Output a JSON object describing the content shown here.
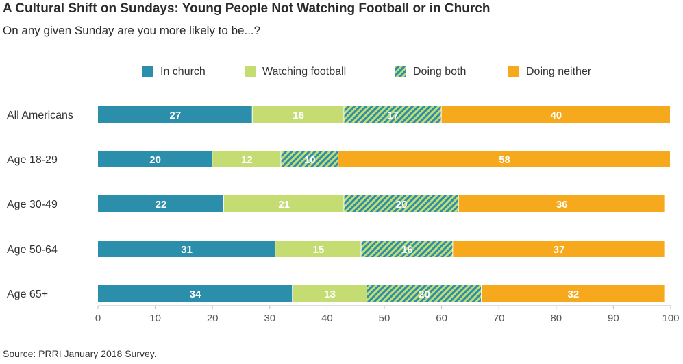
{
  "header": {
    "title": "A Cultural Shift on Sundays: Young People Not Watching Football or in Church",
    "subtitle": "On any given Sunday are you more likely to be...?"
  },
  "footer": {
    "source": "Source: PRRI January 2018 Survey."
  },
  "chart_data": {
    "type": "bar",
    "orientation": "horizontal",
    "stacked": true,
    "categories": [
      "All Americans",
      "Age 18-29",
      "Age 30-49",
      "Age 50-64",
      "Age 65+"
    ],
    "series": [
      {
        "name": "In church",
        "values": [
          27,
          20,
          22,
          31,
          34
        ],
        "color": "#2b8fab",
        "pattern": "solid"
      },
      {
        "name": "Watching football",
        "values": [
          16,
          12,
          21,
          15,
          13
        ],
        "color": "#c4dc72",
        "pattern": "solid"
      },
      {
        "name": "Doing both",
        "values": [
          17,
          10,
          20,
          16,
          20
        ],
        "color": "#2b8fab",
        "color2": "#c4dc72",
        "pattern": "striped"
      },
      {
        "name": "Doing neither",
        "values": [
          40,
          58,
          36,
          37,
          32
        ],
        "color": "#f6a91c",
        "pattern": "solid"
      }
    ],
    "xlim": [
      0,
      100
    ],
    "xticks": [
      0,
      10,
      20,
      30,
      40,
      50,
      60,
      70,
      80,
      90,
      100
    ],
    "legend_position": "top",
    "grid": false
  }
}
